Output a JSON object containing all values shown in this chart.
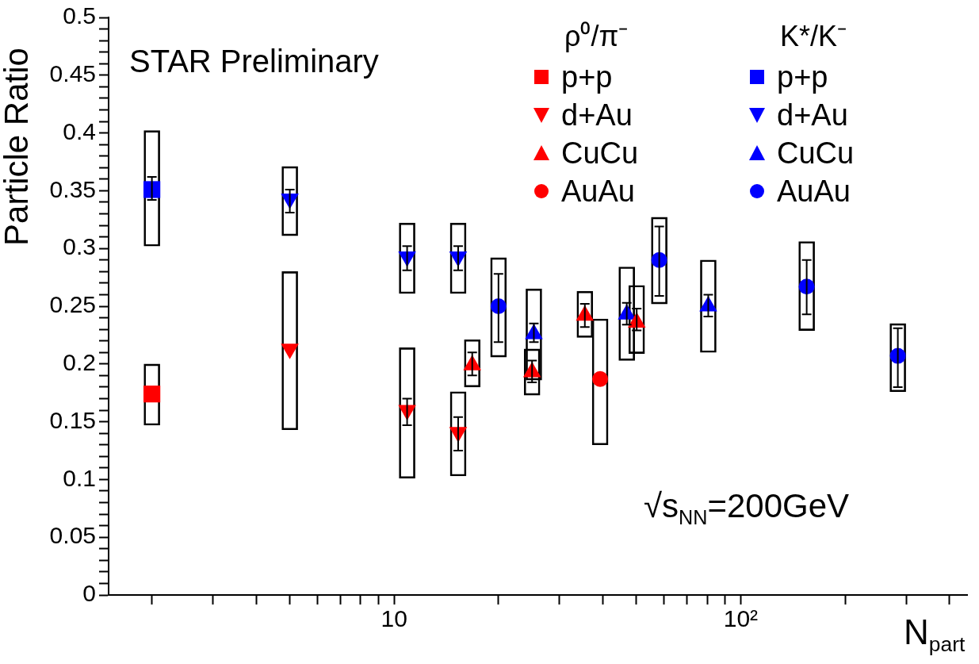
{
  "chart_data": {
    "type": "scatter",
    "xlabel": "N$_{part}$",
    "ylabel": "Particle Ratio",
    "log": "x",
    "grid": false,
    "legend": "top right",
    "annotations": [
      "STAR Preliminary",
      "ρ⁰/π⁻",
      "K*/K⁻",
      "√s$_{NN}$=200GeV"
    ],
    "xlim": [
      1.5,
      450
    ],
    "xticks": [
      {
        "value": 2,
        "label": null
      },
      {
        "value": 3,
        "label": null
      },
      {
        "value": 4,
        "label": null
      },
      {
        "value": 5,
        "label": null
      },
      {
        "value": 6,
        "label": null
      },
      {
        "value": 7,
        "label": null
      },
      {
        "value": 8,
        "label": null
      },
      {
        "value": 9,
        "label": null
      },
      10,
      {
        "value": 20,
        "label": null
      },
      {
        "value": 30,
        "label": null
      },
      {
        "value": 40,
        "label": null
      },
      {
        "value": 50,
        "label": null
      },
      {
        "value": 60,
        "label": null
      },
      {
        "value": 70,
        "label": null
      },
      {
        "value": 80,
        "label": null
      },
      {
        "value": 90,
        "label": null
      },
      {
        "value": 100,
        "label": "10²"
      },
      {
        "value": 200,
        "label": null
      },
      {
        "value": 300,
        "label": null
      },
      {
        "value": 400,
        "label": null
      }
    ],
    "ylim": [
      0,
      0.5
    ],
    "yticks": [
      0,
      {
        "value": 0.01,
        "label": null
      },
      {
        "value": 0.02,
        "label": null
      },
      {
        "value": 0.03,
        "label": null
      },
      {
        "value": 0.04,
        "label": null
      },
      0.05,
      {
        "value": 0.06,
        "label": null
      },
      {
        "value": 0.07,
        "label": null
      },
      {
        "value": 0.08,
        "label": null
      },
      {
        "value": 0.09,
        "label": null
      },
      0.1,
      {
        "value": 0.11,
        "label": null
      },
      {
        "value": 0.12,
        "label": null
      },
      {
        "value": 0.13,
        "label": null
      },
      {
        "value": 0.14,
        "label": null
      },
      0.15,
      {
        "value": 0.16,
        "label": null
      },
      {
        "value": 0.17,
        "label": null
      },
      {
        "value": 0.18,
        "label": null
      },
      {
        "value": 0.19,
        "label": null
      },
      0.2,
      {
        "value": 0.21,
        "label": null
      },
      {
        "value": 0.22,
        "label": null
      },
      {
        "value": 0.23,
        "label": null
      },
      {
        "value": 0.24,
        "label": null
      },
      0.25,
      {
        "value": 0.26,
        "label": null
      },
      {
        "value": 0.27,
        "label": null
      },
      {
        "value": 0.28,
        "label": null
      },
      {
        "value": 0.29,
        "label": null
      },
      0.3,
      {
        "value": 0.31,
        "label": null
      },
      {
        "value": 0.32,
        "label": null
      },
      {
        "value": 0.33,
        "label": null
      },
      {
        "value": 0.34,
        "label": null
      },
      0.35,
      {
        "value": 0.36,
        "label": null
      },
      {
        "value": 0.37,
        "label": null
      },
      {
        "value": 0.38,
        "label": null
      },
      {
        "value": 0.39,
        "label": null
      },
      0.4,
      {
        "value": 0.41,
        "label": null
      },
      {
        "value": 0.42,
        "label": null
      },
      {
        "value": 0.43,
        "label": null
      },
      {
        "value": 0.44,
        "label": null
      },
      0.45,
      {
        "value": 0.46,
        "label": null
      },
      {
        "value": 0.47,
        "label": null
      },
      {
        "value": 0.48,
        "label": null
      },
      {
        "value": 0.49,
        "label": null
      },
      0.5
    ],
    "series": [
      {
        "type": "bar",
        "color": "#000000",
        "x": [
          2,
          5,
          10.9,
          15.3,
          16.8,
          25,
          35.5,
          39.3,
          50.1
        ],
        "base": [
          0.147,
          0.143,
          0.101,
          0.103,
          0.18,
          0.173,
          0.223,
          0.13,
          0.209
        ],
        "values": [
          0.053,
          0.137,
          0.113,
          0.073,
          0.041,
          0.04,
          0.04,
          0.109,
          0.059
        ]
      },
      {
        "type": "bar",
        "color": "#000000",
        "x": [
          2,
          5,
          10.9,
          15.3,
          20,
          25.3,
          46.9,
          58.2,
          80.6,
          155,
          284
        ],
        "base": [
          0.302,
          0.311,
          0.261,
          0.261,
          0.206,
          0.186,
          0.203,
          0.252,
          0.21,
          0.229,
          0.176
        ],
        "values": [
          0.1,
          0.06,
          0.061,
          0.061,
          0.086,
          0.079,
          0.081,
          0.075,
          0.08,
          0.077,
          0.059
        ]
      },
      {
        "name": "p+p",
        "marker": "square",
        "color": "#ff0000",
        "x": [
          2
        ],
        "values": [
          0.174
        ],
        "errors": [
          null
        ]
      },
      {
        "name": "d+Au",
        "marker": "triangle-down",
        "color": "#ff0000",
        "x": [
          5,
          10.9,
          15.3
        ],
        "values": [
          0.213,
          0.16,
          0.141
        ],
        "errors": [
          null,
          [
            0.147,
            0.17
          ],
          [
            0.125,
            0.154
          ]
        ]
      },
      {
        "name": "CuCu",
        "marker": "triangle",
        "color": "#ff0000",
        "x": [
          16.8,
          25,
          35.5,
          50.1
        ],
        "values": [
          0.199,
          0.193,
          0.242,
          0.236
        ],
        "errors": [
          [
            0.19,
            0.21
          ],
          [
            0.184,
            0.203
          ],
          [
            0.232,
            0.252
          ],
          [
            0.229,
            0.248
          ]
        ]
      },
      {
        "name": "AuAu",
        "marker": "circle",
        "color": "#ff0000",
        "x": [
          39.3
        ],
        "values": [
          0.187
        ],
        "errors": [
          null
        ]
      },
      {
        "name": "p+p",
        "marker": "square",
        "color": "#0000ff",
        "x": [
          2
        ],
        "values": [
          0.351
        ],
        "errors": [
          [
            0.342,
            0.362
          ]
        ]
      },
      {
        "name": "d+Au",
        "marker": "triangle-down",
        "color": "#0000ff",
        "x": [
          5,
          10.9,
          15.3
        ],
        "values": [
          0.343,
          0.293,
          0.293
        ],
        "errors": [
          [
            0.331,
            0.351
          ],
          [
            0.281,
            0.302
          ],
          [
            0.281,
            0.302
          ]
        ]
      },
      {
        "name": "CuCu",
        "marker": "triangle",
        "color": "#0000ff",
        "x": [
          25.3,
          46.9,
          80.6
        ],
        "values": [
          0.226,
          0.243,
          0.25
        ],
        "errors": [
          [
            0.219,
            0.235
          ],
          [
            0.234,
            0.253
          ],
          [
            0.241,
            0.26
          ]
        ]
      },
      {
        "name": "AuAu",
        "marker": "circle",
        "color": "#0000ff",
        "x": [
          20,
          58.2,
          155,
          284
        ],
        "values": [
          0.25,
          0.29,
          0.267,
          0.207
        ],
        "errors": [
          [
            0.219,
            0.278
          ],
          [
            0.259,
            0.319
          ],
          [
            0.243,
            0.29
          ],
          [
            0.18,
            0.231
          ]
        ]
      }
    ]
  }
}
